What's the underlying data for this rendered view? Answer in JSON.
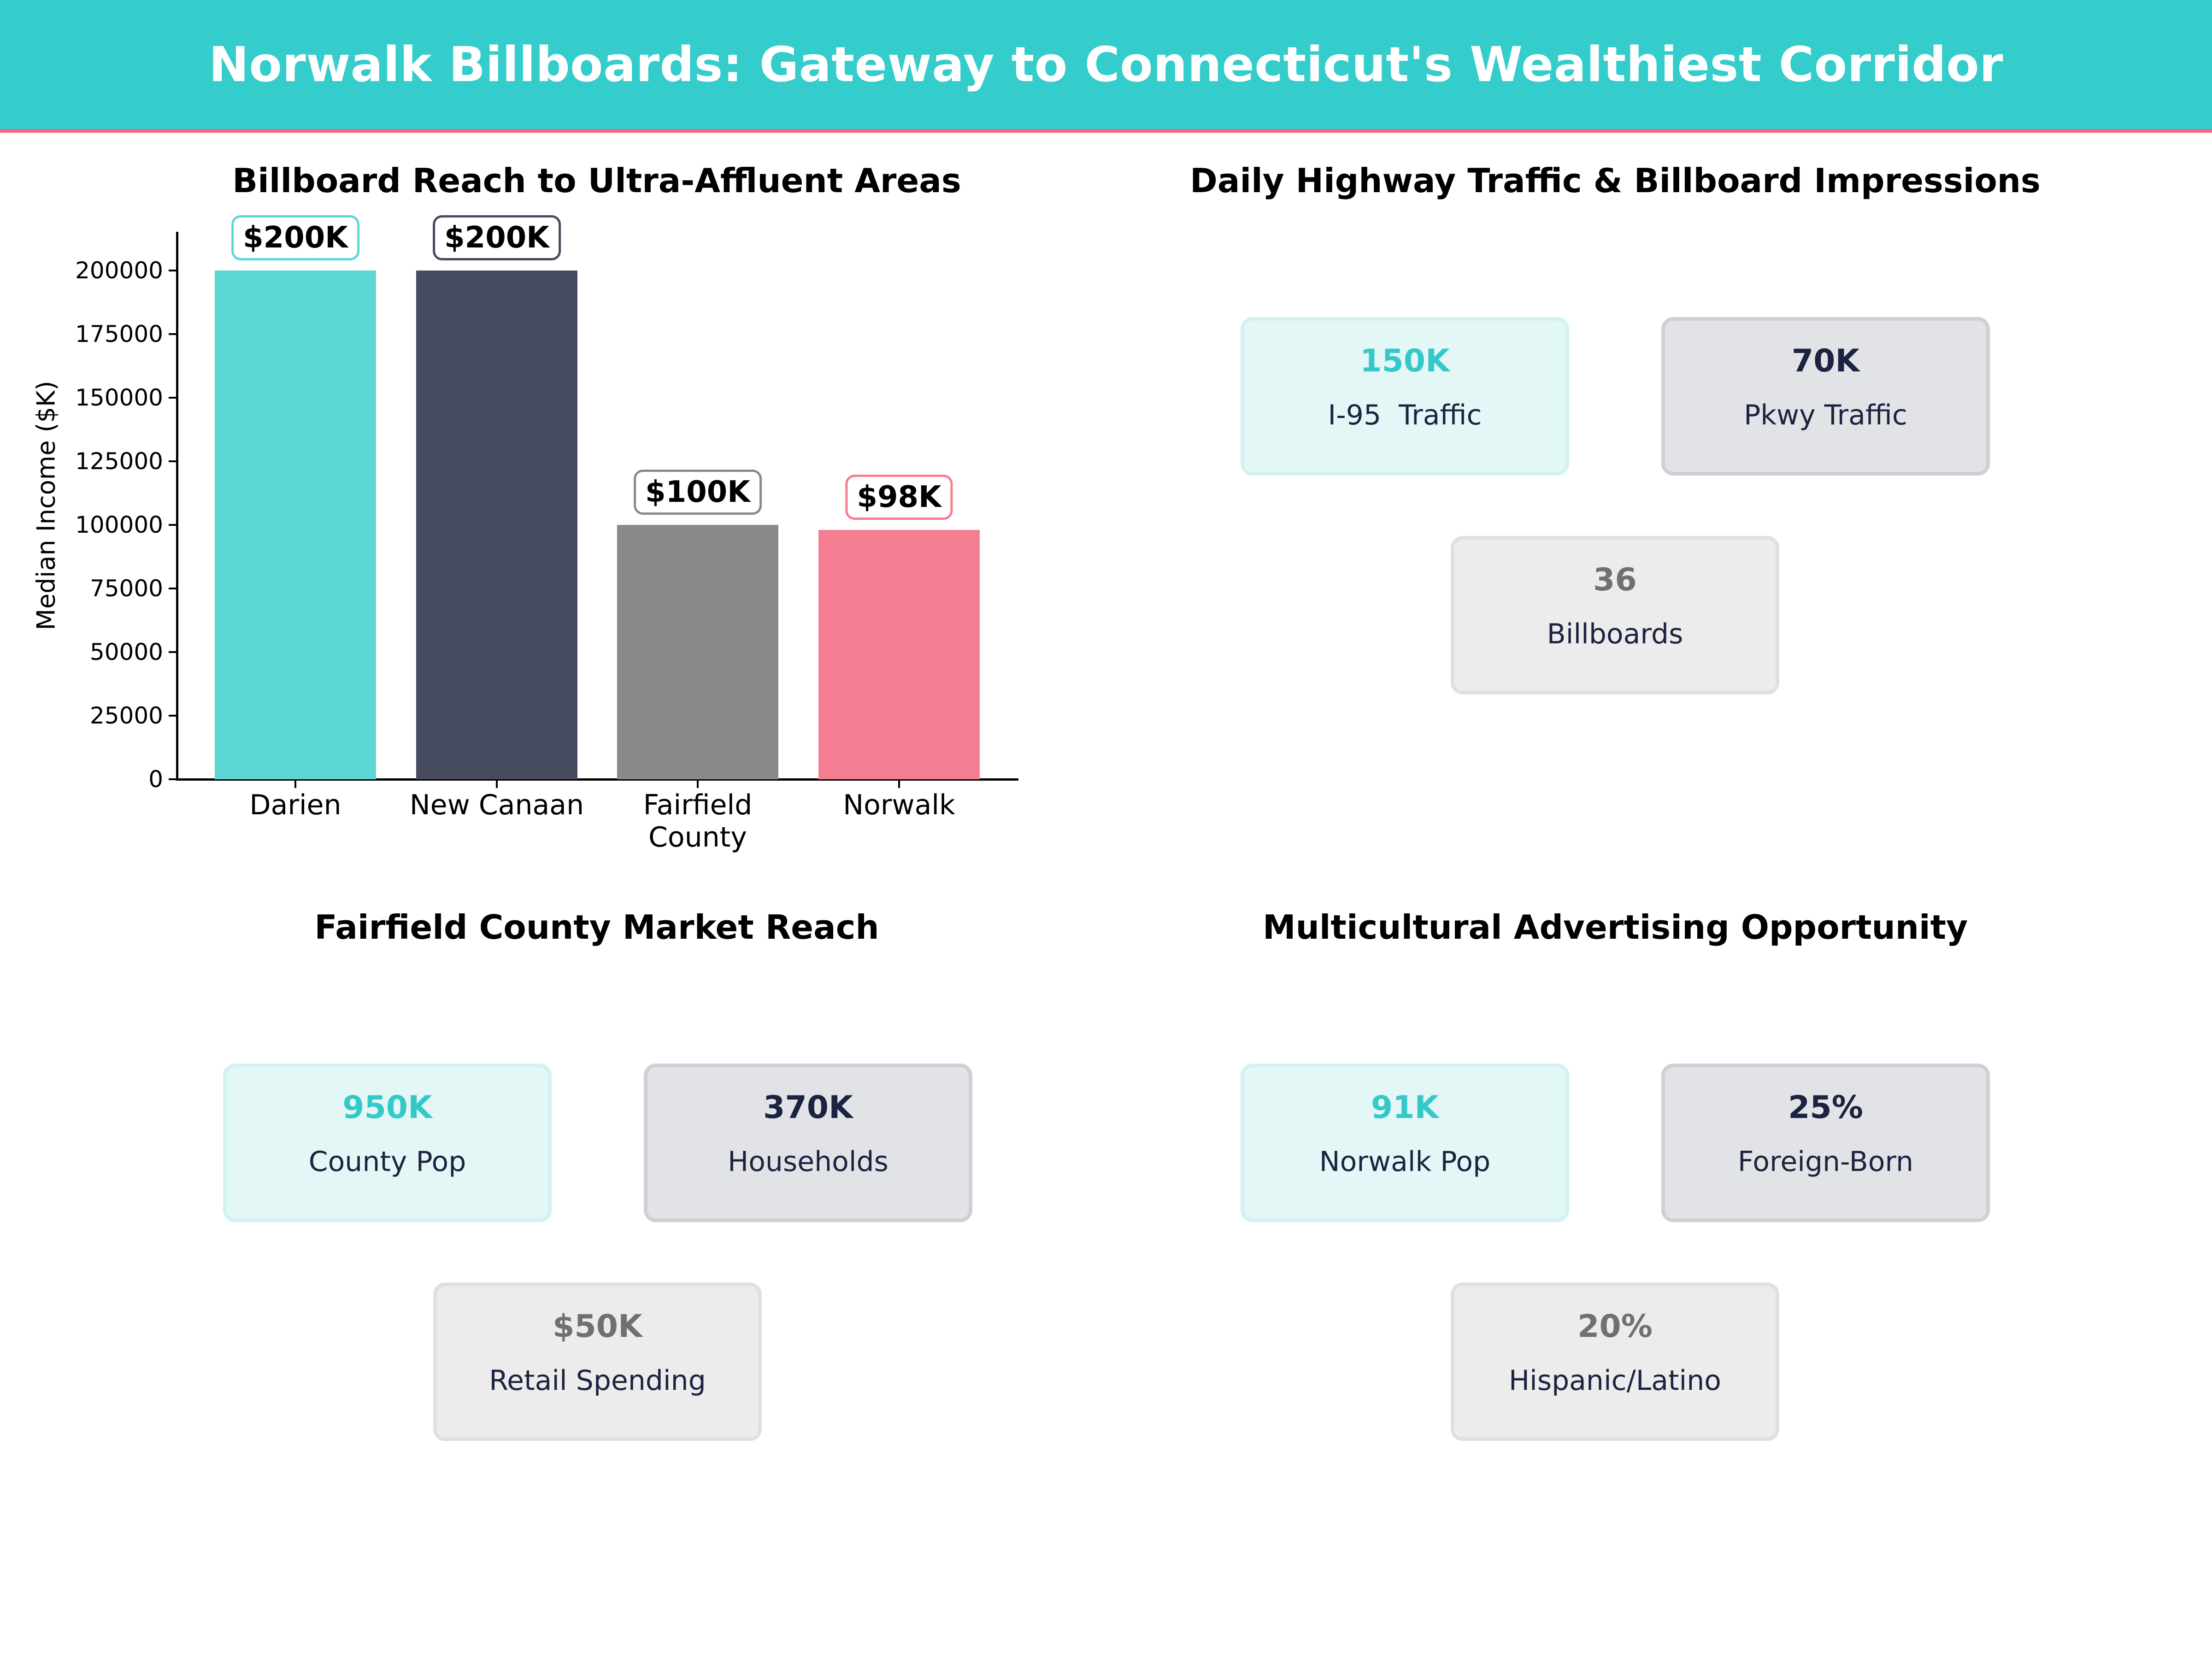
{
  "header": {
    "title": "Norwalk Billboards: Gateway to Connecticut's Wealthiest Corridor"
  },
  "colors": {
    "header_bg": "#35cccc",
    "header_border": "#f0697f",
    "teal": "#5cd7d5",
    "navy": "#474b5f",
    "gray": "#8a8a8a",
    "pink": "#f47d92",
    "value_teal": "#35c8c8",
    "value_navy": "#1c2340",
    "value_gray": "#707070"
  },
  "chart_data": {
    "type": "bar",
    "title": "Billboard Reach to Ultra-Affluent Areas",
    "xlabel": "",
    "ylabel": "Median Income ($K)",
    "categories": [
      "Darien",
      "New Canaan",
      "Fairfield\nCounty",
      "Norwalk"
    ],
    "values": [
      200000,
      200000,
      100000,
      98000
    ],
    "value_labels": [
      "$200K",
      "$200K",
      "$100K",
      "$98K"
    ],
    "bar_colors": [
      "#5cd7d5",
      "#474b5f",
      "#8a8a8a",
      "#f47d92"
    ],
    "yticks": [
      0,
      25000,
      50000,
      75000,
      100000,
      125000,
      150000,
      175000,
      200000
    ],
    "ylim": [
      0,
      215000
    ],
    "grid": false,
    "legend": null
  },
  "panels": {
    "traffic": {
      "title": "Daily Highway Traffic & Billboard Impressions",
      "cards": [
        {
          "value": "150K",
          "label": "I-95  Traffic"
        },
        {
          "value": "70K",
          "label": "Pkwy Traffic"
        },
        {
          "value": "36",
          "label": "Billboards"
        }
      ]
    },
    "market": {
      "title": "Fairfield County Market Reach",
      "cards": [
        {
          "value": "950K",
          "label": "County Pop"
        },
        {
          "value": "370K",
          "label": "Households"
        },
        {
          "value": "$50K",
          "label": "Retail Spending"
        }
      ]
    },
    "multicultural": {
      "title": "Multicultural Advertising Opportunity",
      "cards": [
        {
          "value": "91K",
          "label": "Norwalk Pop"
        },
        {
          "value": "25%",
          "label": "Foreign-Born"
        },
        {
          "value": "20%",
          "label": "Hispanic/Latino"
        }
      ]
    }
  }
}
